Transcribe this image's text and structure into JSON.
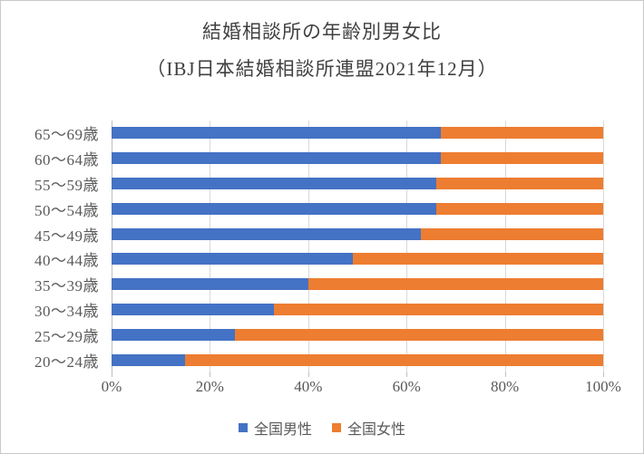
{
  "figure": {
    "title_line1": "結婚相談所の年齢別男女比",
    "title_line2": "（IBJ日本結婚相談所連盟2021年12月）"
  },
  "chart_data": {
    "type": "bar",
    "orientation": "horizontal",
    "stacked": true,
    "percent_stacked": true,
    "title": "結婚相談所の年齢別男女比（IBJ日本結婚相談所連盟2021年12月）",
    "categories_top_to_bottom": [
      "65〜69歳",
      "60〜64歳",
      "55〜59歳",
      "50〜54歳",
      "45〜49歳",
      "40〜44歳",
      "35〜39歳",
      "30〜34歳",
      "25〜29歳",
      "20〜24歳"
    ],
    "series": [
      {
        "name": "全国男性",
        "color": "#4472C4",
        "values": [
          67,
          67,
          66,
          66,
          63,
          49,
          40,
          33,
          25,
          15
        ]
      },
      {
        "name": "全国女性",
        "color": "#ED7D31",
        "values": [
          33,
          33,
          34,
          34,
          37,
          51,
          60,
          67,
          75,
          85
        ]
      }
    ],
    "x_axis": {
      "min": 0,
      "max": 100,
      "tick_labels": [
        "0%",
        "20%",
        "40%",
        "60%",
        "80%",
        "100%"
      ]
    },
    "grid": true,
    "legend_position": "bottom"
  },
  "colors": {
    "male_series": "#4472C4",
    "female_series": "#ED7D31",
    "gridline": "#d9d9d9",
    "axis_text": "#595959",
    "title_text": "#404040"
  }
}
